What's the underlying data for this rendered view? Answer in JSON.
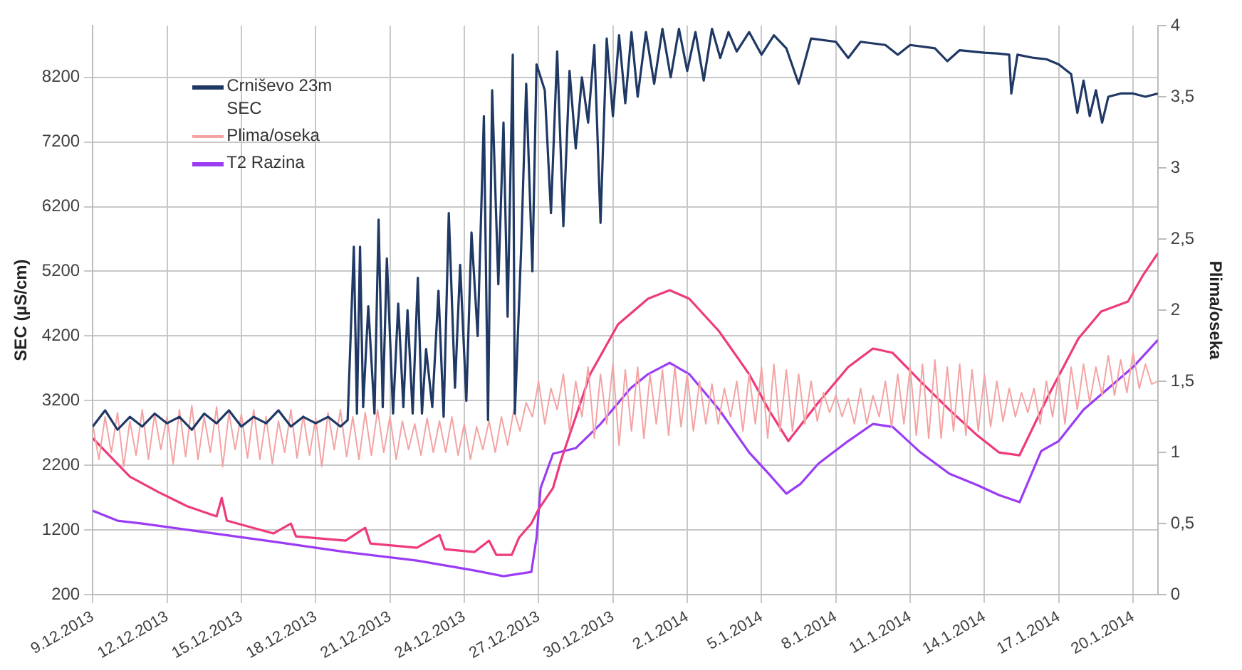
{
  "chart_data": {
    "type": "line",
    "ylabel": "SEC (µS/cm)",
    "y2label": "Plima/oseka",
    "xlim": [
      "2013-12-09",
      "2014-01-21"
    ],
    "xticks": [
      {
        "value": "2013-12-09",
        "label": "9.12.2013"
      },
      {
        "value": "2013-12-12",
        "label": "12.12.2013"
      },
      {
        "value": "2013-12-15",
        "label": "15.12.2013"
      },
      {
        "value": "2013-12-18",
        "label": "18.12.2013"
      },
      {
        "value": "2013-12-21",
        "label": "21.12.2013"
      },
      {
        "value": "2013-12-24",
        "label": "24.12.2013"
      },
      {
        "value": "2013-12-27",
        "label": "27.12.2013"
      },
      {
        "value": "2013-12-30",
        "label": "30.12.2013"
      },
      {
        "value": "2014-01-02",
        "label": "2.1.2014"
      },
      {
        "value": "2014-01-05",
        "label": "5.1.2014"
      },
      {
        "value": "2014-01-08",
        "label": "8.1.2014"
      },
      {
        "value": "2014-01-11",
        "label": "11.1.2014"
      },
      {
        "value": "2014-01-14",
        "label": "14.1.2014"
      },
      {
        "value": "2014-01-17",
        "label": "17.1.2014"
      },
      {
        "value": "2014-01-20",
        "label": "20.1.2014"
      }
    ],
    "ylim": [
      200,
      9000
    ],
    "yticks": [
      200,
      1200,
      2200,
      3200,
      4200,
      5200,
      6200,
      7200,
      8200
    ],
    "y2lim": [
      0,
      4
    ],
    "y2ticks": [
      0,
      {
        "value": 0.5,
        "label": "0,5"
      },
      1,
      {
        "value": 1.5,
        "label": "1,5"
      },
      2,
      {
        "value": 2.5,
        "label": "2,5"
      },
      3,
      {
        "value": 3.5,
        "label": "3,5"
      },
      4
    ],
    "grid": true,
    "legend": "top left",
    "series": [
      {
        "name": "Crniševo 23m SEC",
        "color": "#1f3864",
        "x": [
          "2013-12-09T00:00",
          "2013-12-09T12:00",
          "2013-12-10T00:00",
          "2013-12-10T12:00",
          "2013-12-11T00:00",
          "2013-12-11T12:00",
          "2013-12-12T00:00",
          "2013-12-12T12:00",
          "2013-12-13T00:00",
          "2013-12-13T12:00",
          "2013-12-14T00:00",
          "2013-12-14T12:00",
          "2013-12-15T00:00",
          "2013-12-15T12:00",
          "2013-12-16T00:00",
          "2013-12-16T12:00",
          "2013-12-17T00:00",
          "2013-12-17T12:00",
          "2013-12-18T00:00",
          "2013-12-18T12:00",
          "2013-12-19T00:00",
          "2013-12-19T07:00",
          "2013-12-19T13:00",
          "2013-12-19T16:00",
          "2013-12-19T19:00",
          "2013-12-19T22:00",
          "2013-12-20T03:00",
          "2013-12-20T09:00",
          "2013-12-20T13:00",
          "2013-12-20T17:00",
          "2013-12-20T21:00",
          "2013-12-21T03:00",
          "2013-12-21T08:00",
          "2013-12-21T13:00",
          "2013-12-21T17:00",
          "2013-12-21T22:00",
          "2013-12-22T03:00",
          "2013-12-22T07:00",
          "2013-12-22T11:00",
          "2013-12-22T17:00",
          "2013-12-22T23:00",
          "2013-12-23T04:00",
          "2013-12-23T09:00",
          "2013-12-23T15:00",
          "2013-12-23T20:00",
          "2013-12-24T02:00",
          "2013-12-24T07:00",
          "2013-12-24T13:00",
          "2013-12-24T19:00",
          "2013-12-24T23:00",
          "2013-12-25T03:00",
          "2013-12-25T09:00",
          "2013-12-25T14:00",
          "2013-12-25T18:00",
          "2013-12-25T23:00",
          "2013-12-26T01:00",
          "2013-12-26T07:00",
          "2013-12-26T12:00",
          "2013-12-26T18:00",
          "2013-12-26T22:00",
          "2013-12-27T06:00",
          "2013-12-27T12:00",
          "2013-12-27T18:00",
          "2013-12-28T00:00",
          "2013-12-28T06:00",
          "2013-12-28T12:00",
          "2013-12-28T18:00",
          "2013-12-29T00:00",
          "2013-12-29T06:00",
          "2013-12-29T12:00",
          "2013-12-29T18:00",
          "2013-12-30T00:00",
          "2013-12-30T06:00",
          "2013-12-30T12:00",
          "2013-12-30T18:00",
          "2013-12-31T00:00",
          "2013-12-31T08:00",
          "2013-12-31T16:00",
          "2014-01-01T00:00",
          "2014-01-01T08:00",
          "2014-01-01T16:00",
          "2014-01-02T00:00",
          "2014-01-02T08:00",
          "2014-01-02T16:00",
          "2014-01-03T00:00",
          "2014-01-03T08:00",
          "2014-01-03T16:00",
          "2014-01-04T00:00",
          "2014-01-04T12:00",
          "2014-01-05T00:00",
          "2014-01-05T12:00",
          "2014-01-06T00:00",
          "2014-01-06T12:00",
          "2014-01-07T00:00",
          "2014-01-08T00:00",
          "2014-01-08T12:00",
          "2014-01-09T00:00",
          "2014-01-10T00:00",
          "2014-01-10T12:00",
          "2014-01-11T00:00",
          "2014-01-12T00:00",
          "2014-01-12T12:00",
          "2014-01-13T00:00",
          "2014-01-14T00:00",
          "2014-01-14T12:00",
          "2014-01-15T00:00",
          "2014-01-15T02:00",
          "2014-01-15T08:00",
          "2014-01-16T00:00",
          "2014-01-16T12:00",
          "2014-01-17T00:00",
          "2014-01-17T12:00",
          "2014-01-17T18:00",
          "2014-01-18T00:00",
          "2014-01-18T06:00",
          "2014-01-18T12:00",
          "2014-01-18T18:00",
          "2014-01-19T00:00",
          "2014-01-19T12:00",
          "2014-01-20T00:00",
          "2014-01-20T12:00",
          "2014-01-21T00:00"
        ],
        "values": [
          2800,
          3050,
          2750,
          2950,
          2800,
          3000,
          2850,
          2950,
          2750,
          3000,
          2850,
          3050,
          2800,
          2950,
          2850,
          3050,
          2800,
          2950,
          2850,
          2950,
          2800,
          2900,
          5580,
          3000,
          5580,
          3100,
          4660,
          3000,
          6000,
          3100,
          5400,
          3000,
          4700,
          3100,
          4600,
          3000,
          5100,
          3000,
          4000,
          3100,
          4900,
          2950,
          6100,
          3400,
          5300,
          3200,
          5800,
          4200,
          7600,
          2900,
          8000,
          5000,
          7500,
          4500,
          8550,
          3000,
          5500,
          8100,
          5200,
          8400,
          8000,
          6100,
          8600,
          5900,
          8300,
          7100,
          8200,
          7500,
          8700,
          5950,
          8800,
          7600,
          8850,
          7800,
          8900,
          7900,
          8900,
          8100,
          8950,
          8200,
          8950,
          8300,
          8900,
          8150,
          8950,
          8500,
          8900,
          8600,
          8900,
          8550,
          8850,
          8650,
          8100,
          8800,
          8750,
          8500,
          8750,
          8700,
          8550,
          8700,
          8650,
          8450,
          8620,
          8580,
          8570,
          8550,
          7950,
          8550,
          8500,
          8480,
          8400,
          8250,
          7650,
          8150,
          7600,
          8000,
          7500,
          7900,
          7950,
          7950,
          7900,
          7950
        ]
      },
      {
        "name": "Plima/oseka",
        "color": "#f4a3a3",
        "axis": "y2",
        "x": [
          "2013-12-09T00:00",
          "2013-12-09T06:00",
          "2013-12-09T12:00",
          "2013-12-09T18:00",
          "2013-12-10T00:00",
          "2013-12-10T06:00",
          "2013-12-10T12:00",
          "2013-12-10T18:00",
          "2013-12-11T00:00",
          "2013-12-11T06:00",
          "2013-12-11T12:00",
          "2013-12-11T18:00",
          "2013-12-12T00:00",
          "2013-12-12T06:00",
          "2013-12-12T12:00",
          "2013-12-12T18:00",
          "2013-12-13T00:00",
          "2013-12-13T06:00",
          "2013-12-13T12:00",
          "2013-12-13T18:00",
          "2013-12-14T00:00",
          "2013-12-14T06:00",
          "2013-12-14T12:00",
          "2013-12-14T18:00",
          "2013-12-15T00:00",
          "2013-12-15T06:00",
          "2013-12-15T12:00",
          "2013-12-15T18:00",
          "2013-12-16T00:00",
          "2013-12-16T06:00",
          "2013-12-16T12:00",
          "2013-12-16T18:00",
          "2013-12-17T00:00",
          "2013-12-17T06:00",
          "2013-12-17T12:00",
          "2013-12-17T18:00",
          "2013-12-18T00:00",
          "2013-12-18T06:00",
          "2013-12-18T12:00",
          "2013-12-18T18:00",
          "2013-12-19T00:00",
          "2013-12-19T06:00",
          "2013-12-19T12:00",
          "2013-12-19T18:00",
          "2013-12-20T00:00",
          "2013-12-20T06:00",
          "2013-12-20T12:00",
          "2013-12-20T18:00",
          "2013-12-21T00:00",
          "2013-12-21T06:00",
          "2013-12-21T12:00",
          "2013-12-21T18:00",
          "2013-12-22T00:00",
          "2013-12-22T06:00",
          "2013-12-22T12:00",
          "2013-12-22T18:00",
          "2013-12-23T00:00",
          "2013-12-23T06:00",
          "2013-12-23T12:00",
          "2013-12-23T18:00",
          "2013-12-24T00:00",
          "2013-12-24T06:00",
          "2013-12-24T12:00",
          "2013-12-24T18:00",
          "2013-12-25T00:00",
          "2013-12-25T06:00",
          "2013-12-25T12:00",
          "2013-12-25T18:00",
          "2013-12-26T00:00",
          "2013-12-26T06:00",
          "2013-12-26T12:00",
          "2013-12-26T18:00",
          "2013-12-27T00:00",
          "2013-12-27T06:00",
          "2013-12-27T12:00",
          "2013-12-27T18:00",
          "2013-12-28T00:00",
          "2013-12-28T06:00",
          "2013-12-28T12:00",
          "2013-12-28T18:00",
          "2013-12-29T00:00",
          "2013-12-29T06:00",
          "2013-12-29T12:00",
          "2013-12-29T18:00",
          "2013-12-30T00:00",
          "2013-12-30T06:00",
          "2013-12-30T12:00",
          "2013-12-30T18:00",
          "2013-12-31T00:00",
          "2013-12-31T06:00",
          "2013-12-31T12:00",
          "2013-12-31T18:00",
          "2014-01-01T00:00",
          "2014-01-01T06:00",
          "2014-01-01T12:00",
          "2014-01-01T18:00",
          "2014-01-02T00:00",
          "2014-01-02T06:00",
          "2014-01-02T12:00",
          "2014-01-02T18:00",
          "2014-01-03T00:00",
          "2014-01-03T06:00",
          "2014-01-03T12:00",
          "2014-01-03T18:00",
          "2014-01-04T00:00",
          "2014-01-04T06:00",
          "2014-01-04T12:00",
          "2014-01-04T18:00",
          "2014-01-05T00:00",
          "2014-01-05T06:00",
          "2014-01-05T12:00",
          "2014-01-05T18:00",
          "2014-01-06T00:00",
          "2014-01-06T06:00",
          "2014-01-06T12:00",
          "2014-01-06T18:00",
          "2014-01-07T00:00",
          "2014-01-07T06:00",
          "2014-01-07T12:00",
          "2014-01-07T18:00",
          "2014-01-08T00:00",
          "2014-01-08T06:00",
          "2014-01-08T12:00",
          "2014-01-08T18:00",
          "2014-01-09T00:00",
          "2014-01-09T06:00",
          "2014-01-09T12:00",
          "2014-01-09T18:00",
          "2014-01-10T00:00",
          "2014-01-10T06:00",
          "2014-01-10T12:00",
          "2014-01-10T18:00",
          "2014-01-11T00:00",
          "2014-01-11T06:00",
          "2014-01-11T12:00",
          "2014-01-11T18:00",
          "2014-01-12T00:00",
          "2014-01-12T06:00",
          "2014-01-12T12:00",
          "2014-01-12T18:00",
          "2014-01-13T00:00",
          "2014-01-13T06:00",
          "2014-01-13T12:00",
          "2014-01-13T18:00",
          "2014-01-14T00:00",
          "2014-01-14T06:00",
          "2014-01-14T12:00",
          "2014-01-14T18:00",
          "2014-01-15T00:00",
          "2014-01-15T06:00",
          "2014-01-15T12:00",
          "2014-01-15T18:00",
          "2014-01-16T00:00",
          "2014-01-16T06:00",
          "2014-01-16T12:00",
          "2014-01-16T18:00",
          "2014-01-17T00:00",
          "2014-01-17T06:00",
          "2014-01-17T12:00",
          "2014-01-17T18:00",
          "2014-01-18T00:00",
          "2014-01-18T06:00",
          "2014-01-18T12:00",
          "2014-01-18T18:00",
          "2014-01-19T00:00",
          "2014-01-19T06:00",
          "2014-01-19T12:00",
          "2014-01-19T18:00",
          "2014-01-20T00:00",
          "2014-01-20T06:00",
          "2014-01-20T12:00",
          "2014-01-20T18:00",
          "2014-01-21T00:00"
        ],
        "values": [
          1.2,
          0.95,
          1.25,
          1.0,
          1.28,
          0.9,
          1.22,
          0.98,
          1.3,
          0.95,
          1.27,
          1.02,
          1.25,
          0.92,
          1.3,
          0.97,
          1.33,
          0.95,
          1.25,
          1.0,
          1.32,
          0.9,
          1.28,
          1.02,
          1.27,
          0.96,
          1.3,
          0.95,
          1.25,
          0.92,
          1.22,
          1.0,
          1.3,
          0.96,
          1.26,
          0.98,
          1.24,
          0.9,
          1.28,
          1.02,
          1.3,
          0.97,
          1.25,
          0.95,
          1.28,
          0.98,
          1.3,
          1.0,
          1.25,
          0.95,
          1.22,
          1.02,
          1.2,
          0.98,
          1.24,
          1.0,
          1.22,
          1.0,
          1.25,
          0.98,
          1.2,
          0.95,
          1.18,
          1.02,
          1.22,
          1.0,
          1.25,
          1.05,
          1.3,
          1.15,
          1.35,
          1.25,
          1.5,
          1.2,
          1.45,
          1.3,
          1.55,
          1.15,
          1.5,
          1.25,
          1.6,
          1.1,
          1.55,
          1.2,
          1.62,
          1.05,
          1.58,
          1.15,
          1.6,
          1.1,
          1.55,
          1.2,
          1.58,
          1.12,
          1.6,
          1.18,
          1.55,
          1.15,
          1.5,
          1.2,
          1.48,
          1.2,
          1.45,
          1.25,
          1.5,
          1.15,
          1.55,
          1.2,
          1.6,
          1.1,
          1.62,
          1.15,
          1.58,
          1.15,
          1.55,
          1.2,
          1.5,
          1.22,
          1.42,
          1.28,
          1.4,
          1.25,
          1.38,
          1.2,
          1.45,
          1.2,
          1.4,
          1.25,
          1.5,
          1.18,
          1.55,
          1.2,
          1.6,
          1.12,
          1.62,
          1.1,
          1.65,
          1.1,
          1.6,
          1.15,
          1.62,
          1.12,
          1.58,
          1.15,
          1.55,
          1.18,
          1.5,
          1.22,
          1.45,
          1.25,
          1.42,
          1.28,
          1.45,
          1.2,
          1.5,
          1.25,
          1.55,
          1.2,
          1.6,
          1.3,
          1.62,
          1.35,
          1.6,
          1.4,
          1.68,
          1.4,
          1.65,
          1.42,
          1.7,
          1.45,
          1.62,
          1.48,
          1.5
        ]
      },
      {
        "color": "#ee3a7c",
        "axis": "y2",
        "x": [
          "2013-12-09T00:00",
          "2013-12-10T12:00",
          "2013-12-11T16:00",
          "2013-12-12T20:00",
          "2013-12-14T00:00",
          "2013-12-14T05:00",
          "2013-12-14T10:00",
          "2013-12-16T07:00",
          "2013-12-17T00:00",
          "2013-12-17T05:00",
          "2013-12-19T05:00",
          "2013-12-20T00:00",
          "2013-12-20T05:00",
          "2013-12-22T02:00",
          "2013-12-23T00:00",
          "2013-12-23T05:00",
          "2013-12-24T10:00",
          "2013-12-25T00:00",
          "2013-12-25T07:00",
          "2013-12-25T22:00",
          "2013-12-26T05:00",
          "2013-12-26T17:00",
          "2013-12-27T00:00",
          "2013-12-27T14:00",
          "2013-12-27T22:00",
          "2013-12-28T12:00",
          "2013-12-29T02:00",
          "2013-12-30T05:00",
          "2013-12-31T10:00",
          "2014-01-01T07:00",
          "2014-01-02T02:00",
          "2014-01-03T07:00",
          "2014-01-04T12:00",
          "2014-01-05T07:00",
          "2014-01-06T02:00",
          "2014-01-07T07:00",
          "2014-01-08T12:00",
          "2014-01-09T12:00",
          "2014-01-10T07:00",
          "2014-01-11T10:00",
          "2014-01-12T14:00",
          "2014-01-13T17:00",
          "2014-01-14T14:00",
          "2014-01-15T10:00",
          "2014-01-16T14:00",
          "2014-01-17T19:00",
          "2014-01-18T17:00",
          "2014-01-19T19:00",
          "2014-01-20T10:00",
          "2014-01-21T00:00"
        ],
        "values": [
          1.1,
          0.83,
          0.72,
          0.62,
          0.55,
          0.68,
          0.52,
          0.43,
          0.5,
          0.41,
          0.38,
          0.47,
          0.36,
          0.33,
          0.42,
          0.32,
          0.3,
          0.38,
          0.28,
          0.28,
          0.4,
          0.5,
          0.6,
          0.75,
          0.95,
          1.25,
          1.55,
          1.9,
          2.08,
          2.14,
          2.08,
          1.85,
          1.55,
          1.3,
          1.08,
          1.35,
          1.6,
          1.73,
          1.7,
          1.5,
          1.3,
          1.12,
          1.0,
          0.98,
          1.4,
          1.8,
          1.99,
          2.06,
          2.25,
          2.4
        ]
      },
      {
        "name": "T2 Razina",
        "color": "#9b3cf5",
        "axis": "y2",
        "x": [
          "2013-12-09T00:00",
          "2013-12-10T00:00",
          "2013-12-11T00:00",
          "2013-12-13T12:00",
          "2013-12-16T10:00",
          "2013-12-19T05:00",
          "2013-12-22T02:00",
          "2013-12-24T10:00",
          "2013-12-25T14:00",
          "2013-12-26T17:00",
          "2013-12-26T22:00",
          "2013-12-27T02:00",
          "2013-12-27T14:00",
          "2013-12-28T12:00",
          "2013-12-29T12:00",
          "2013-12-30T17:00",
          "2013-12-31T10:00",
          "2014-01-01T07:00",
          "2014-01-02T02:00",
          "2014-01-03T07:00",
          "2014-01-04T12:00",
          "2014-01-05T07:00",
          "2014-01-06T00:00",
          "2014-01-06T14:00",
          "2014-01-07T07:00",
          "2014-01-08T12:00",
          "2014-01-09T12:00",
          "2014-01-10T07:00",
          "2014-01-11T10:00",
          "2014-01-12T14:00",
          "2014-01-13T17:00",
          "2014-01-14T14:00",
          "2014-01-15T10:00",
          "2014-01-16T07:00",
          "2014-01-17T00:00",
          "2014-01-18T00:00",
          "2014-01-19T00:00",
          "2014-01-20T00:00",
          "2014-01-21T00:00"
        ],
        "values": [
          0.59,
          0.52,
          0.5,
          0.44,
          0.37,
          0.3,
          0.24,
          0.17,
          0.13,
          0.16,
          0.4,
          0.75,
          0.99,
          1.03,
          1.2,
          1.45,
          1.55,
          1.63,
          1.55,
          1.3,
          1.0,
          0.85,
          0.71,
          0.78,
          0.92,
          1.08,
          1.2,
          1.18,
          1.0,
          0.85,
          0.77,
          0.7,
          0.65,
          1.01,
          1.08,
          1.3,
          1.45,
          1.6,
          1.79
        ]
      }
    ]
  }
}
